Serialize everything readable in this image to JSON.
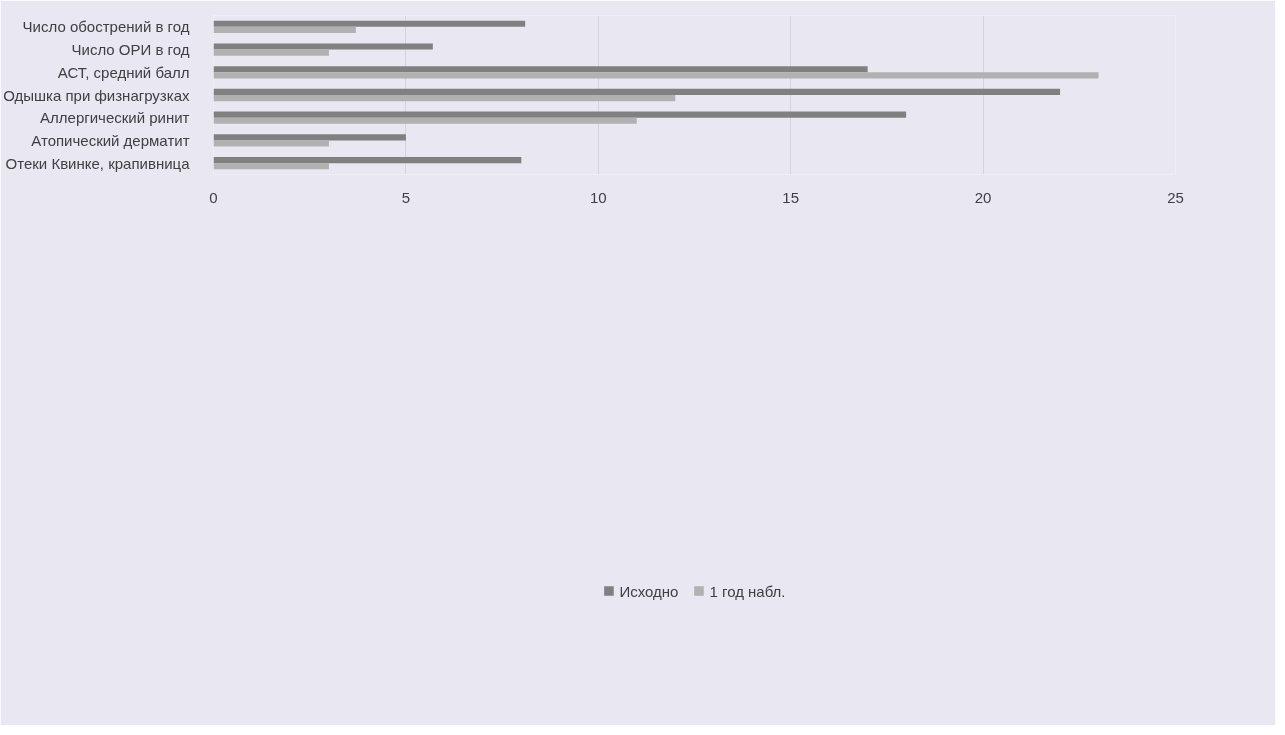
{
  "chart_data": {
    "type": "bar",
    "orientation": "horizontal",
    "categories": [
      "Число обострений в год",
      "Число ОРИ в год",
      "АСТ, средний балл",
      "Одышка при физнагрузках",
      "Аллергический ринит",
      "Атопический дерматит",
      "Отеки Квинке, крапивница"
    ],
    "series": [
      {
        "name": "Исходно",
        "color": "#808080",
        "values": [
          8.1,
          5.7,
          17,
          22,
          18,
          5,
          8
        ]
      },
      {
        "name": "1 год набл.",
        "color": "#b1b1b1",
        "values": [
          3.7,
          3,
          23,
          12,
          11,
          3,
          3
        ]
      }
    ],
    "xlim": [
      0,
      25
    ],
    "xticks": [
      0,
      5,
      10,
      15,
      20,
      25
    ],
    "grid": "x",
    "legend": "bottom"
  }
}
